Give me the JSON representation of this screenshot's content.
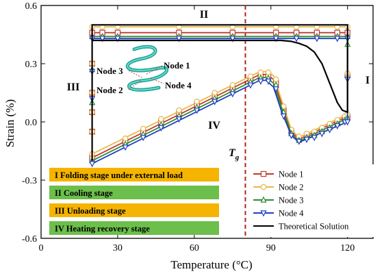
{
  "chart_data": {
    "type": "line",
    "xlabel": "Temperature (°C)",
    "ylabel": "Strain (%)",
    "xlim": [
      0,
      130
    ],
    "ylim": [
      -0.6,
      0.6
    ],
    "xticks": [
      0,
      30,
      60,
      90,
      120
    ],
    "yticks": [
      -0.6,
      -0.3,
      0.0,
      0.3,
      0.6
    ],
    "ytick_labels": [
      "-0.6",
      "-0.3",
      "0.0",
      "0.3",
      "0.6"
    ],
    "grid": false,
    "tg": {
      "x": 80,
      "label": "T",
      "sub": "g",
      "color": "#b22222"
    },
    "stage_numerals": {
      "I": "I",
      "II": "II",
      "III": "III",
      "IV": "IV"
    },
    "inset_labels": {
      "node1": "Node 1",
      "node2": "Node 2",
      "node3": "Node 3",
      "node4": "Node 4"
    },
    "stage_boxes": [
      {
        "label": "I Folding stage under external load",
        "color": "#f4b400"
      },
      {
        "label": "II Cooling stage",
        "color": "#6cbf4a"
      },
      {
        "label": "III Unloading stage",
        "color": "#f4b400"
      },
      {
        "label": "IV Heating recovery stage",
        "color": "#6cbf4a"
      }
    ],
    "legend_position": "bottom-right",
    "series": [
      {
        "name": "Node 1",
        "color": "#c0392b",
        "marker": "square",
        "points": [
          [
            20,
            -0.185
          ],
          [
            20,
            0.46
          ],
          [
            120,
            0.46
          ],
          [
            120,
            0.03
          ],
          [
            101,
            -0.09
          ],
          [
            98,
            -0.05
          ],
          [
            94,
            0.1
          ],
          [
            91,
            0.22
          ],
          [
            88,
            0.245
          ],
          [
            85,
            0.24
          ],
          [
            20,
            -0.185
          ]
        ],
        "marker_points": [
          [
            20,
            0.46
          ],
          [
            20,
            0.3
          ],
          [
            20,
            0.15
          ],
          [
            20,
            0.05
          ],
          [
            20,
            -0.05
          ],
          [
            20,
            -0.185
          ],
          [
            33,
            -0.1
          ],
          [
            40,
            -0.05
          ],
          [
            47,
            0.0
          ],
          [
            54,
            0.045
          ],
          [
            61,
            0.09
          ],
          [
            68,
            0.135
          ],
          [
            75,
            0.175
          ],
          [
            82,
            0.22
          ],
          [
            86,
            0.24
          ],
          [
            89,
            0.24
          ],
          [
            92,
            0.2
          ],
          [
            95,
            0.06
          ],
          [
            98,
            -0.05
          ],
          [
            101,
            -0.085
          ],
          [
            104,
            -0.07
          ],
          [
            107,
            -0.06
          ],
          [
            110,
            -0.04
          ],
          [
            113,
            -0.02
          ],
          [
            116,
            0.0
          ],
          [
            119,
            0.02
          ],
          [
            120,
            0.03
          ],
          [
            120,
            0.24
          ],
          [
            120,
            0.46
          ],
          [
            24,
            0.46
          ],
          [
            30,
            0.46
          ],
          [
            54,
            0.46
          ],
          [
            75,
            0.46
          ],
          [
            92,
            0.46
          ],
          [
            100,
            0.46
          ],
          [
            108,
            0.46
          ],
          [
            116,
            0.46
          ]
        ]
      },
      {
        "name": "Node 2",
        "color": "#e8b84a",
        "marker": "circle",
        "points": [
          [
            20,
            -0.165
          ],
          [
            20,
            0.49
          ],
          [
            120,
            0.49
          ],
          [
            120,
            0.04
          ],
          [
            101,
            -0.08
          ],
          [
            98,
            -0.04
          ],
          [
            94,
            0.12
          ],
          [
            91,
            0.24
          ],
          [
            88,
            0.26
          ],
          [
            85,
            0.255
          ],
          [
            20,
            -0.165
          ]
        ],
        "marker_points": [
          [
            20,
            0.49
          ],
          [
            20,
            0.3
          ],
          [
            20,
            0.15
          ],
          [
            20,
            0.05
          ],
          [
            20,
            -0.05
          ],
          [
            20,
            -0.165
          ],
          [
            33,
            -0.085
          ],
          [
            40,
            -0.035
          ],
          [
            47,
            0.015
          ],
          [
            54,
            0.06
          ],
          [
            61,
            0.105
          ],
          [
            68,
            0.15
          ],
          [
            75,
            0.19
          ],
          [
            82,
            0.235
          ],
          [
            86,
            0.255
          ],
          [
            89,
            0.255
          ],
          [
            92,
            0.22
          ],
          [
            95,
            0.08
          ],
          [
            98,
            -0.04
          ],
          [
            101,
            -0.075
          ],
          [
            104,
            -0.06
          ],
          [
            107,
            -0.05
          ],
          [
            110,
            -0.03
          ],
          [
            113,
            -0.01
          ],
          [
            116,
            0.01
          ],
          [
            119,
            0.03
          ],
          [
            120,
            0.04
          ],
          [
            120,
            0.25
          ],
          [
            120,
            0.49
          ],
          [
            24,
            0.49
          ],
          [
            30,
            0.49
          ],
          [
            54,
            0.49
          ],
          [
            75,
            0.49
          ],
          [
            92,
            0.49
          ],
          [
            100,
            0.49
          ],
          [
            108,
            0.49
          ],
          [
            116,
            0.49
          ]
        ]
      },
      {
        "name": "Node 3",
        "color": "#2e8b2e",
        "marker": "triangle",
        "points": [
          [
            20,
            -0.2
          ],
          [
            20,
            0.44
          ],
          [
            120,
            0.44
          ],
          [
            120,
            0.02
          ],
          [
            101,
            -0.1
          ],
          [
            98,
            -0.06
          ],
          [
            94,
            0.08
          ],
          [
            91,
            0.2
          ],
          [
            88,
            0.23
          ],
          [
            85,
            0.225
          ],
          [
            20,
            -0.2
          ]
        ],
        "marker_points": [
          [
            20,
            0.44
          ],
          [
            20,
            0.27
          ],
          [
            20,
            0.1
          ],
          [
            20,
            -0.2
          ],
          [
            33,
            -0.115
          ],
          [
            40,
            -0.065
          ],
          [
            47,
            -0.015
          ],
          [
            54,
            0.03
          ],
          [
            61,
            0.075
          ],
          [
            68,
            0.12
          ],
          [
            75,
            0.16
          ],
          [
            82,
            0.205
          ],
          [
            86,
            0.225
          ],
          [
            89,
            0.225
          ],
          [
            92,
            0.19
          ],
          [
            95,
            0.05
          ],
          [
            98,
            -0.06
          ],
          [
            101,
            -0.095
          ],
          [
            104,
            -0.08
          ],
          [
            107,
            -0.07
          ],
          [
            110,
            -0.05
          ],
          [
            113,
            -0.03
          ],
          [
            116,
            -0.01
          ],
          [
            119,
            0.01
          ],
          [
            120,
            0.02
          ],
          [
            120,
            0.4
          ],
          [
            120,
            0.44
          ],
          [
            24,
            0.44
          ],
          [
            30,
            0.44
          ],
          [
            54,
            0.44
          ],
          [
            75,
            0.44
          ],
          [
            92,
            0.44
          ],
          [
            100,
            0.44
          ],
          [
            108,
            0.44
          ],
          [
            116,
            0.44
          ]
        ]
      },
      {
        "name": "Node 4",
        "color": "#1f3fbf",
        "marker": "triangle-down",
        "points": [
          [
            20,
            -0.215
          ],
          [
            20,
            0.43
          ],
          [
            120,
            0.43
          ],
          [
            120,
            0.0
          ],
          [
            101,
            -0.105
          ],
          [
            98,
            -0.07
          ],
          [
            94,
            0.06
          ],
          [
            91,
            0.18
          ],
          [
            88,
            0.215
          ],
          [
            85,
            0.21
          ],
          [
            20,
            -0.215
          ]
        ],
        "marker_points": [
          [
            20,
            0.43
          ],
          [
            20,
            0.26
          ],
          [
            20,
            0.12
          ],
          [
            20,
            -0.215
          ],
          [
            33,
            -0.13
          ],
          [
            40,
            -0.08
          ],
          [
            47,
            -0.03
          ],
          [
            54,
            0.015
          ],
          [
            61,
            0.06
          ],
          [
            68,
            0.105
          ],
          [
            75,
            0.145
          ],
          [
            82,
            0.19
          ],
          [
            86,
            0.21
          ],
          [
            89,
            0.21
          ],
          [
            92,
            0.17
          ],
          [
            95,
            0.03
          ],
          [
            98,
            -0.07
          ],
          [
            101,
            -0.1
          ],
          [
            104,
            -0.09
          ],
          [
            107,
            -0.08
          ],
          [
            110,
            -0.06
          ],
          [
            113,
            -0.04
          ],
          [
            116,
            -0.02
          ],
          [
            119,
            0.0
          ],
          [
            120,
            0.0
          ],
          [
            120,
            0.22
          ],
          [
            120,
            0.43
          ],
          [
            24,
            0.43
          ],
          [
            30,
            0.43
          ],
          [
            54,
            0.43
          ],
          [
            75,
            0.43
          ],
          [
            92,
            0.43
          ],
          [
            100,
            0.43
          ],
          [
            108,
            0.43
          ],
          [
            116,
            0.43
          ]
        ]
      },
      {
        "name": "Theoretical Solution",
        "color": "#000000",
        "marker": "none",
        "points": [
          [
            20,
            -0.2
          ],
          [
            20,
            0.5
          ],
          [
            120,
            0.5
          ],
          [
            120,
            0.05
          ],
          [
            118,
            0.06
          ],
          [
            116,
            0.1
          ],
          [
            113,
            0.2
          ],
          [
            110,
            0.3
          ],
          [
            107,
            0.36
          ],
          [
            104,
            0.39
          ],
          [
            101,
            0.405
          ],
          [
            98,
            0.415
          ],
          [
            94,
            0.42
          ],
          [
            20,
            0.42
          ]
        ]
      }
    ]
  }
}
